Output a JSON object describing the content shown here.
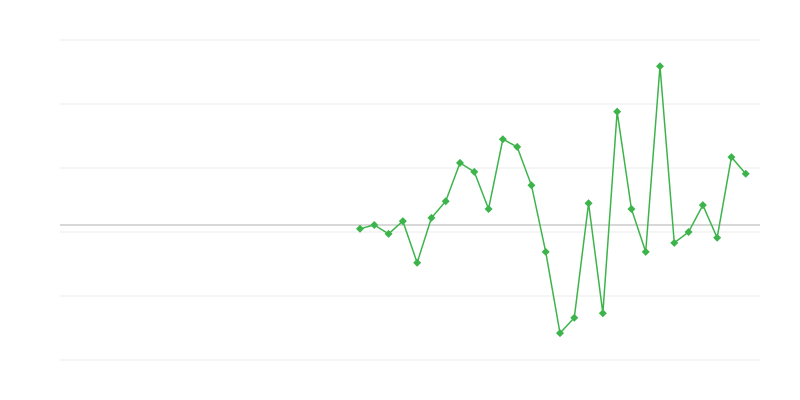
{
  "chart_data": {
    "type": "line",
    "title": "",
    "xlabel": "",
    "ylabel": "",
    "xlim": [
      1,
      50
    ],
    "ylim": [
      -2,
      3
    ],
    "grid": true,
    "y_gridlines": [
      -2,
      -1,
      0,
      1,
      2,
      3
    ],
    "reference_line": 0.11,
    "marker": "diamond",
    "colors": {
      "series": "#3cb44b",
      "grid": "#ebebeb",
      "reference": "#b0b0b0"
    },
    "series": [
      {
        "x": [
          22,
          23,
          24,
          25,
          26,
          27,
          28,
          29,
          30,
          31,
          32,
          33,
          34,
          35,
          36,
          37,
          38,
          39,
          40,
          41,
          42,
          43,
          44,
          45,
          46,
          47,
          48,
          49
        ],
        "values": [
          0.05,
          0.11,
          -0.03,
          0.17,
          -0.48,
          0.22,
          0.48,
          1.08,
          0.94,
          0.36,
          1.45,
          1.33,
          0.73,
          -0.31,
          -1.58,
          -1.34,
          0.45,
          -1.27,
          1.88,
          0.36,
          -0.31,
          2.59,
          -0.17,
          0.0,
          0.42,
          -0.09,
          1.17,
          0.91
        ]
      }
    ]
  }
}
